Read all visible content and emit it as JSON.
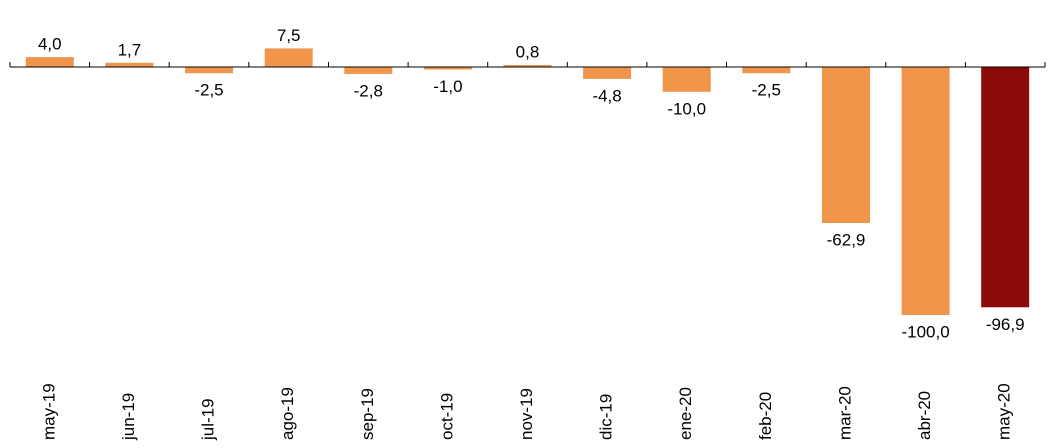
{
  "chart_data": {
    "type": "bar",
    "title": "",
    "xlabel": "",
    "ylabel": "",
    "categories": [
      "may-19",
      "jun-19",
      "jul-19",
      "ago-19",
      "sep-19",
      "oct-19",
      "nov-19",
      "dic-19",
      "ene-20",
      "feb-20",
      "mar-20",
      "abr-20",
      "may-20"
    ],
    "values": [
      4.0,
      1.7,
      -2.5,
      7.5,
      -2.8,
      -1.0,
      0.8,
      -4.8,
      -10.0,
      -2.5,
      -62.9,
      -100.0,
      -96.9
    ],
    "value_labels": [
      "4,0",
      "1,7",
      "-2,5",
      "7,5",
      "-2,8",
      "-1,0",
      "0,8",
      "-4,8",
      "-10,0",
      "-2,5",
      "-62,9",
      "-100,0",
      "-96,9"
    ],
    "ylim": [
      -100,
      7.5
    ],
    "grid": false,
    "legend": "none",
    "colors": {
      "bar": "#F0954A",
      "highlight_bar": "#8B0A0A",
      "axis": "#000000"
    },
    "highlight_index": 12
  }
}
